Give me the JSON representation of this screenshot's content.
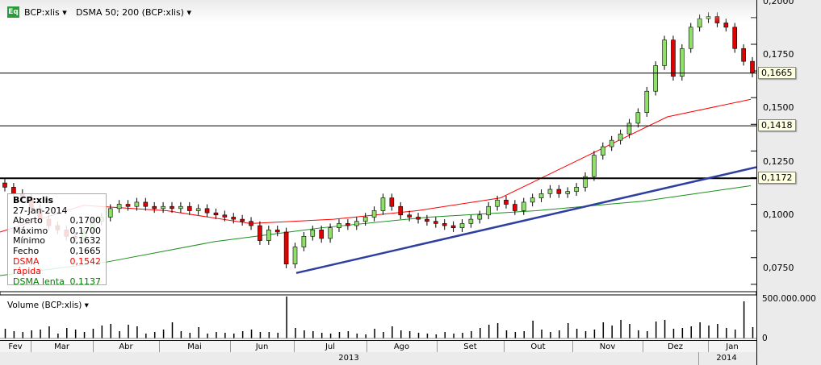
{
  "header": {
    "symbol_label": "BCP:xlis",
    "indicator_label": "DSMA 50; 200 (BCP:xlis)",
    "eq_badge": "Eq"
  },
  "tooltip": {
    "title": "BCP:xlis",
    "date": "27-Jan-2014",
    "rows": [
      {
        "label": "Aberto",
        "value": "0,1700",
        "color": "#000000"
      },
      {
        "label": "Máximo",
        "value": "0,1700",
        "color": "#000000"
      },
      {
        "label": "Mínimo",
        "value": "0,1632",
        "color": "#000000"
      },
      {
        "label": "Fecho",
        "value": "0,1665",
        "color": "#000000"
      },
      {
        "label": "DSMA rápida",
        "value": "0,1542",
        "color": "#ff0000"
      },
      {
        "label": "DSMA lenta",
        "value": "0,1137",
        "color": "#008000"
      }
    ]
  },
  "volume_panel": {
    "label": "Volume (BCP:xlis)",
    "ticks": [
      "500.000.000",
      "0"
    ]
  },
  "price_axis": {
    "ticks": [
      "0,2000",
      "0,1750",
      "0,1500",
      "0,1250",
      "0,1000",
      "0,0750"
    ],
    "tags": [
      "0,1665",
      "0,1418",
      "0,1172"
    ]
  },
  "time_axis": {
    "months": [
      "Fev",
      "Mar",
      "Abr",
      "Mai",
      "Jun",
      "Jul",
      "Ago",
      "Set",
      "Out",
      "Nov",
      "Dez",
      "Jan"
    ],
    "years": [
      "2013",
      "2014"
    ]
  },
  "colors": {
    "up": "#8fe06a",
    "down": "#e00000",
    "fast_ma": "#ff0000",
    "slow_ma": "#1a8f1a",
    "trendline": "#2f3fa0"
  },
  "chart_data": {
    "type": "candlestick",
    "ylim": [
      0.0665,
      0.2005
    ],
    "closes": [
      0.113,
      0.11,
      0.108,
      0.103,
      0.098,
      0.095,
      0.093,
      0.09,
      0.089,
      0.092,
      0.097,
      0.099,
      0.103,
      0.105,
      0.104,
      0.106,
      0.104,
      0.103,
      0.104,
      0.103,
      0.104,
      0.102,
      0.103,
      0.101,
      0.1,
      0.099,
      0.098,
      0.097,
      0.095,
      0.088,
      0.093,
      0.092,
      0.077,
      0.085,
      0.09,
      0.093,
      0.089,
      0.094,
      0.096,
      0.095,
      0.097,
      0.099,
      0.102,
      0.108,
      0.104,
      0.1,
      0.099,
      0.098,
      0.097,
      0.096,
      0.095,
      0.094,
      0.096,
      0.098,
      0.1,
      0.104,
      0.107,
      0.105,
      0.102,
      0.106,
      0.108,
      0.11,
      0.112,
      0.11,
      0.111,
      0.113,
      0.118,
      0.128,
      0.132,
      0.135,
      0.138,
      0.143,
      0.148,
      0.158,
      0.17,
      0.182,
      0.165,
      0.178,
      0.188,
      0.192,
      0.193,
      0.19,
      0.188,
      0.178,
      0.172,
      0.1665
    ],
    "fast_ma": [
      0.092,
      0.1045,
      0.102,
      0.096,
      0.098,
      0.102,
      0.108,
      0.127,
      0.146,
      0.1542
    ],
    "slow_ma": [
      0.0716,
      0.078,
      0.0875,
      0.094,
      0.099,
      0.102,
      0.1065,
      0.1137
    ],
    "hlines": [
      0.1665,
      0.1418,
      0.1172
    ],
    "trendline": [
      0.0728,
      0.1224
    ],
    "volume": [
      120,
      90,
      80,
      100,
      110,
      150,
      60,
      130,
      110,
      80,
      120,
      160,
      180,
      90,
      170,
      150,
      60,
      80,
      110,
      200,
      90,
      70,
      140,
      60,
      80,
      70,
      60,
      90,
      110,
      80,
      80,
      70,
      520,
      130,
      100,
      90,
      70,
      60,
      80,
      90,
      60,
      50,
      120,
      80,
      150,
      100,
      90,
      70,
      60,
      50,
      80,
      60,
      70,
      90,
      130,
      170,
      190,
      100,
      80,
      90,
      220,
      110,
      80,
      100,
      190,
      120,
      90,
      110,
      200,
      160,
      230,
      180,
      100,
      90,
      210,
      230,
      120,
      130,
      150,
      200,
      160,
      180,
      130,
      110,
      460,
      140
    ]
  }
}
